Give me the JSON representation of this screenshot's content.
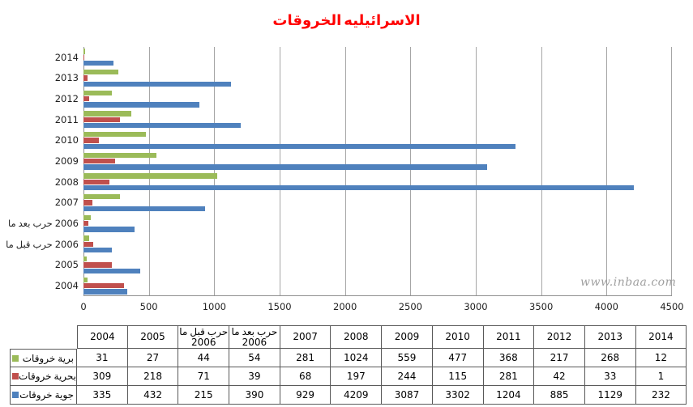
{
  "title": "الخروقات الاسرائيليه",
  "watermark": "www.inbaa.com",
  "chart_data": {
    "type": "bar",
    "orientation": "horizontal",
    "title": "الخروقات الاسرائيليه",
    "categories": [
      "2004",
      "2005",
      "ما قبل حرب 2006",
      "ما بعد حرب 2006",
      "2007",
      "2008",
      "2009",
      "2010",
      "2011",
      "2012",
      "2013",
      "2014"
    ],
    "series": [
      {
        "name": "خروقات برية",
        "color": "#9BBB59",
        "values": [
          31,
          27,
          44,
          54,
          281,
          1024,
          559,
          477,
          368,
          217,
          268,
          12
        ]
      },
      {
        "name": "خروقات بحرية",
        "color": "#C0504D",
        "values": [
          309,
          218,
          71,
          39,
          68,
          197,
          244,
          115,
          281,
          42,
          33,
          1
        ]
      },
      {
        "name": "خروقات جوية",
        "color": "#4F81BD",
        "values": [
          335,
          432,
          215,
          390,
          929,
          4209,
          3087,
          3302,
          1204,
          885,
          1129,
          232
        ]
      }
    ],
    "x_ticks": [
      0,
      500,
      1000,
      1500,
      2000,
      2500,
      3000,
      3500,
      4000,
      4500
    ],
    "xlim": [
      0,
      4500
    ],
    "grid": true,
    "category_axis_order_in_plot": "bottom-to-top",
    "legend_position": "table-row-labels",
    "colors": {
      "title": "#FF0000",
      "gridline": "#A6A6A6",
      "axis": "#8F8F8F",
      "table_border": "#595959"
    }
  }
}
